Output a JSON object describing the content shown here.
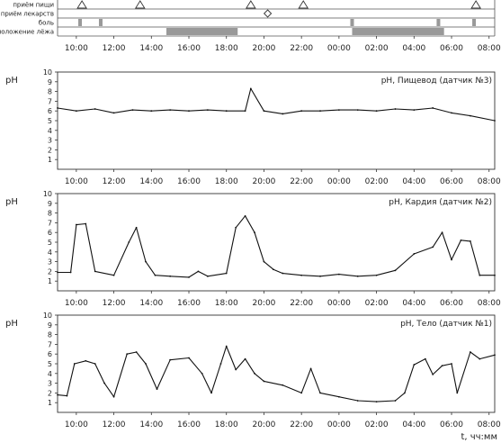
{
  "events": {
    "labels": [
      "приём пищи",
      "приём лекарств",
      "боль",
      "положение лёжа"
    ],
    "meal_hours": [
      10.3,
      13.4,
      19.3,
      22.1,
      31.3
    ],
    "medication_hours": [
      20.2
    ],
    "pain_hours": [
      10.2,
      11.3,
      24.7,
      29.3,
      31.2
    ],
    "lying_intervals": [
      [
        14.8,
        18.6
      ],
      [
        24.7,
        29.6
      ]
    ]
  },
  "x_ticks": [
    "10:00",
    "12:00",
    "14:00",
    "16:00",
    "18:00",
    "20:00",
    "22:00",
    "00:00",
    "02:00",
    "04:00",
    "06:00",
    "08:00"
  ],
  "x_unit_label": "t, чч:мм",
  "chart_data": [
    {
      "type": "line",
      "ylabel": "pH",
      "ylim": [
        0,
        10
      ],
      "yticks": [
        "1",
        "2",
        "3",
        "4",
        "5",
        "6",
        "7",
        "8",
        "9",
        "10"
      ],
      "xlim_hours": [
        9.0,
        32.3
      ],
      "grid": false,
      "legend": "pH, Пищевод (датчик №3)",
      "series": [
        {
          "name": "pH, Пищевод (датчик №3)",
          "x": [
            9.0,
            10.0,
            11.0,
            12.0,
            13.0,
            14.0,
            15.0,
            16.0,
            17.0,
            18.0,
            19.0,
            19.3,
            20.0,
            21.0,
            22.0,
            23.0,
            24.0,
            25.0,
            26.0,
            27.0,
            28.0,
            29.0,
            30.0,
            31.0,
            32.3
          ],
          "y": [
            6.3,
            6.0,
            6.2,
            5.8,
            6.1,
            6.0,
            6.1,
            6.0,
            6.1,
            6.0,
            6.0,
            8.3,
            6.0,
            5.7,
            6.0,
            6.0,
            6.1,
            6.1,
            6.0,
            6.2,
            6.1,
            6.3,
            5.8,
            5.5,
            5.0
          ]
        }
      ]
    },
    {
      "type": "line",
      "ylabel": "pH",
      "ylim": [
        0,
        10
      ],
      "yticks": [
        "1",
        "2",
        "3",
        "4",
        "5",
        "6",
        "7",
        "8",
        "9",
        "10"
      ],
      "xlim_hours": [
        9.0,
        32.3
      ],
      "grid": false,
      "legend": "pH, Кардия (датчик №2)",
      "series": [
        {
          "name": "pH, Кардия (датчик №2)",
          "x": [
            9.0,
            9.7,
            10.0,
            10.5,
            11.0,
            12.0,
            12.8,
            13.2,
            13.7,
            14.2,
            15.0,
            16.0,
            16.5,
            17.0,
            18.0,
            18.5,
            19.0,
            19.5,
            20.0,
            20.5,
            21.0,
            22.0,
            23.0,
            24.0,
            25.0,
            26.0,
            27.0,
            28.0,
            29.0,
            29.5,
            30.0,
            30.5,
            31.0,
            31.5,
            32.3
          ],
          "y": [
            1.9,
            1.9,
            6.8,
            6.9,
            2.0,
            1.6,
            5.0,
            6.5,
            3.0,
            1.6,
            1.5,
            1.4,
            2.0,
            1.5,
            1.8,
            6.5,
            7.7,
            6.0,
            3.0,
            2.2,
            1.8,
            1.6,
            1.5,
            1.7,
            1.5,
            1.6,
            2.1,
            3.8,
            4.5,
            6.0,
            3.2,
            5.2,
            5.1,
            1.6,
            1.6
          ]
        }
      ]
    },
    {
      "type": "line",
      "ylabel": "pH",
      "ylim": [
        0,
        10
      ],
      "yticks": [
        "1",
        "2",
        "3",
        "4",
        "5",
        "6",
        "7",
        "8",
        "9",
        "10"
      ],
      "xlim_hours": [
        9.0,
        32.3
      ],
      "grid": false,
      "legend": "pH, Тело (датчик №1)",
      "series": [
        {
          "name": "pH, Тело (датчик №1)",
          "x": [
            9.0,
            9.5,
            9.9,
            10.5,
            11.0,
            11.5,
            12.0,
            12.7,
            13.2,
            13.7,
            14.3,
            15.0,
            16.0,
            16.7,
            17.2,
            17.7,
            18.0,
            18.5,
            19.0,
            19.5,
            20.0,
            21.0,
            22.0,
            22.5,
            23.0,
            24.0,
            25.0,
            26.0,
            27.0,
            27.5,
            28.0,
            28.6,
            29.0,
            29.5,
            30.0,
            30.3,
            31.0,
            31.5,
            32.3
          ],
          "y": [
            1.8,
            1.7,
            5.0,
            5.3,
            5.0,
            3.0,
            1.6,
            6.0,
            6.2,
            5.0,
            2.4,
            5.4,
            5.6,
            4.0,
            2.0,
            5.0,
            6.8,
            4.4,
            5.5,
            4.0,
            3.2,
            2.8,
            2.0,
            4.5,
            2.0,
            1.6,
            1.2,
            1.1,
            1.2,
            2.0,
            4.9,
            5.5,
            3.9,
            4.8,
            5.0,
            2.0,
            6.2,
            5.5,
            5.9
          ]
        }
      ]
    }
  ]
}
